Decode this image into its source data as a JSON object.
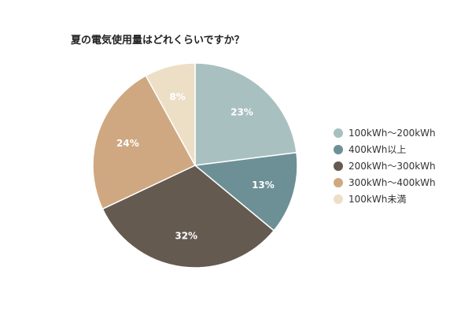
{
  "chart_data": {
    "type": "pie",
    "title": "夏の電気使用量はどれくらいですか？",
    "slices": [
      {
        "label": "100kWh～200kWh",
        "value": 23,
        "display": "23%",
        "color": "#a9c0c0"
      },
      {
        "label": "400kWh以上",
        "value": 13,
        "display": "13%",
        "color": "#6c9096"
      },
      {
        "label": "200kWh～300kWh",
        "value": 32,
        "display": "32%",
        "color": "#655a50"
      },
      {
        "label": "300kWh～400kWh",
        "value": 24,
        "display": "24%",
        "color": "#cfa882"
      },
      {
        "label": "100kWh未満",
        "value": 8,
        "display": "8%",
        "color": "#eddfc6"
      }
    ],
    "legend_position": "right"
  }
}
